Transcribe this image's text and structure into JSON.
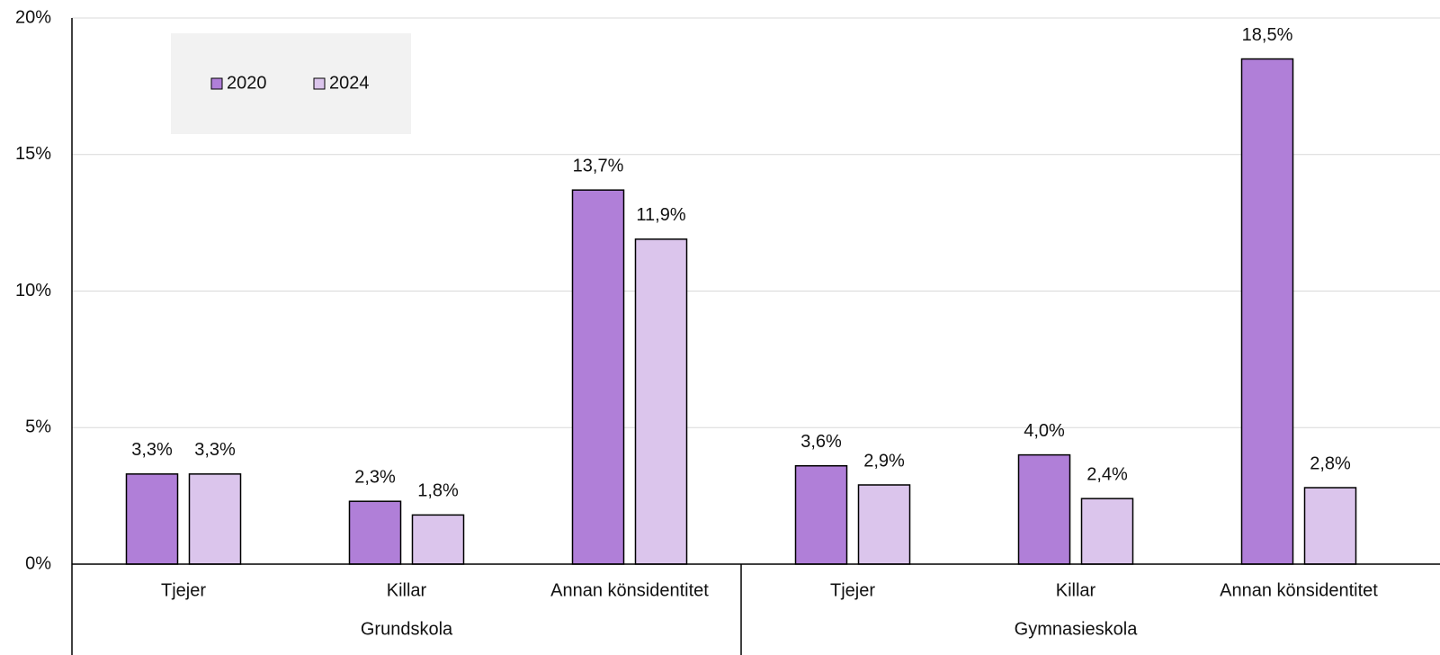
{
  "chart_data": {
    "type": "bar",
    "groups": [
      {
        "name": "Grundskola",
        "categories": [
          "Tjejer",
          "Killar",
          "Annan könsidentitet"
        ]
      },
      {
        "name": "Gymnasieskola",
        "categories": [
          "Tjejer",
          "Killar",
          "Annan könsidentitet"
        ]
      }
    ],
    "series": [
      {
        "name": "2020",
        "color": "#b07fd8",
        "values": [
          3.3,
          2.3,
          13.7,
          3.6,
          4.0,
          18.5
        ],
        "value_labels": [
          "3,3%",
          "2,3%",
          "13,7%",
          "3,6%",
          "4,0%",
          "18,5%"
        ]
      },
      {
        "name": "2024",
        "color": "#dbc5ec",
        "values": [
          3.3,
          1.8,
          11.9,
          2.9,
          2.4,
          2.8
        ],
        "value_labels": [
          "3,3%",
          "1,8%",
          "11,9%",
          "2,9%",
          "2,4%",
          "2,8%"
        ]
      }
    ],
    "ylim": [
      0,
      20
    ],
    "yticks": [
      {
        "value": 0,
        "label": "0%"
      },
      {
        "value": 5,
        "label": "5%"
      },
      {
        "value": 10,
        "label": "10%"
      },
      {
        "value": 15,
        "label": "15%"
      },
      {
        "value": 20,
        "label": "20%"
      }
    ],
    "grid": true,
    "legend": "top-left"
  }
}
